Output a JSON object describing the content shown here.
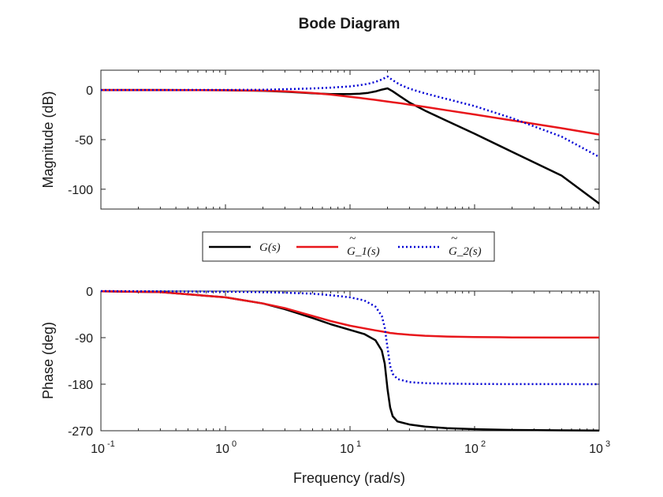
{
  "chart_data": {
    "type": "line",
    "title": "Bode Diagram",
    "xlabel": "Frequency (rad/s)",
    "xscale": "log",
    "xlim": [
      0.1,
      1000
    ],
    "xticks": [
      {
        "base": "10",
        "exp": "-1"
      },
      {
        "base": "10",
        "exp": "0"
      },
      {
        "base": "10",
        "exp": "1"
      },
      {
        "base": "10",
        "exp": "2"
      },
      {
        "base": "10",
        "exp": "3"
      }
    ],
    "legend": {
      "placement": "between-panels",
      "entries": [
        "G(s)",
        "G_1(s)",
        "G_2(s)"
      ],
      "tilde": "~"
    },
    "series_styles": [
      {
        "name": "G(s)",
        "color": "#000000",
        "dash": "solid"
      },
      {
        "name": "G_1(s)",
        "color": "#e8161b",
        "dash": "solid"
      },
      {
        "name": "G_2(s)",
        "color": "#0000d4",
        "dash": "dotted"
      }
    ],
    "magnitude": {
      "ylabel": "Magnitude (dB)",
      "ylim": [
        -120,
        20
      ],
      "yticks": [
        "0",
        "-50",
        "-100"
      ],
      "ytick_values": [
        0,
        -50,
        -100
      ],
      "x": [
        0.1,
        0.3,
        1,
        2,
        3,
        5,
        7,
        10,
        12,
        14,
        16,
        18,
        20,
        22,
        25,
        30,
        40,
        60,
        100,
        200,
        500,
        1000
      ],
      "series": [
        {
          "name": "G(s)",
          "values": [
            0,
            0,
            -0.2,
            -0.8,
            -1.6,
            -3.2,
            -4.0,
            -4.0,
            -3.6,
            -2.8,
            -1.4,
            0.4,
            1.7,
            -1.2,
            -6.0,
            -12.6,
            -20.7,
            -31.1,
            -44.0,
            -62.3,
            -86.3,
            -114.4
          ]
        },
        {
          "name": "G_1(s)",
          "values": [
            0,
            0,
            -0.2,
            -0.6,
            -1.3,
            -3.0,
            -4.6,
            -6.8,
            -7.9,
            -9.0,
            -9.9,
            -10.8,
            -11.6,
            -12.3,
            -13.2,
            -14.7,
            -17.0,
            -20.4,
            -24.6,
            -30.6,
            -38.5,
            -44.8
          ]
        },
        {
          "name": "G_2(s)",
          "values": [
            0,
            0,
            0.1,
            0.3,
            0.8,
            1.6,
            2.4,
            3.7,
            4.9,
            6.3,
            8.2,
            10.6,
            13.6,
            10.0,
            5.6,
            1.4,
            -3.4,
            -9.0,
            -16.2,
            -28.4,
            -47.0,
            -67.4
          ]
        }
      ]
    },
    "phase": {
      "ylabel": "Phase (deg)",
      "ylim": [
        -270,
        0
      ],
      "yticks": [
        "0",
        "-90",
        "-180",
        "-270"
      ],
      "ytick_values": [
        0,
        -90,
        -180,
        -270
      ],
      "x": [
        0.1,
        0.3,
        1,
        2,
        3,
        5,
        7,
        10,
        13,
        16,
        18,
        19,
        20,
        21,
        22,
        24,
        30,
        40,
        60,
        100,
        200,
        500,
        1000
      ],
      "series": [
        {
          "name": "G(s)",
          "values": [
            -0.5,
            -2,
            -12,
            -24,
            -35,
            -52,
            -64,
            -75,
            -83,
            -95,
            -115,
            -140,
            -190,
            -225,
            -242,
            -252,
            -258,
            -262,
            -265,
            -267,
            -268.5,
            -269.3,
            -269.7
          ]
        },
        {
          "name": "G_1(s)",
          "values": [
            -0.5,
            -2,
            -12,
            -24,
            -33,
            -48,
            -58,
            -67,
            -72,
            -76,
            -78,
            -79,
            -80,
            -81,
            -81.5,
            -82.5,
            -84.5,
            -86.3,
            -87.8,
            -88.8,
            -89.5,
            -89.8,
            -89.9
          ]
        },
        {
          "name": "G_2(s)",
          "values": [
            0,
            -0.5,
            -1,
            -2,
            -3,
            -5,
            -8,
            -12,
            -18,
            -30,
            -48,
            -70,
            -110,
            -145,
            -160,
            -170,
            -176,
            -178,
            -179,
            -179.5,
            -179.8,
            -179.9,
            -180
          ]
        }
      ]
    }
  }
}
